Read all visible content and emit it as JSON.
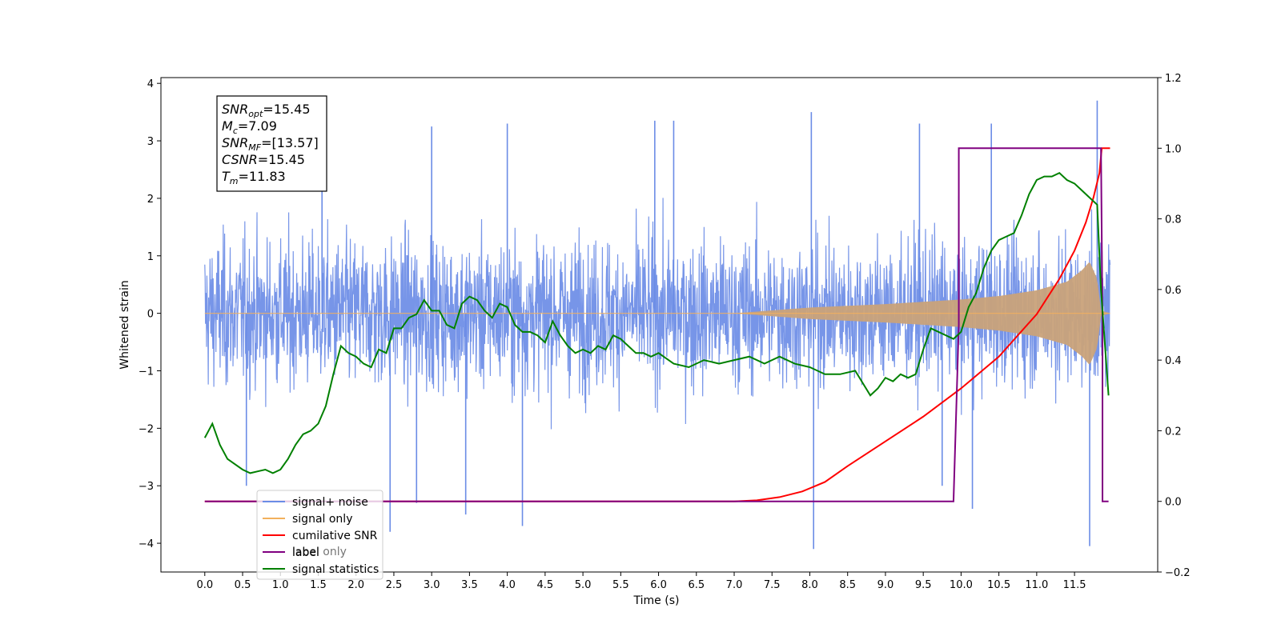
{
  "chart_data": {
    "type": "line",
    "xlabel": "Time (s)",
    "ylabel": "Whitened strain",
    "xlim": [
      -0.58,
      12.6
    ],
    "ylim": [
      -4.5,
      4.1
    ],
    "y2lim": [
      -0.2,
      1.2
    ],
    "x_ticks": [
      0.0,
      0.5,
      1.0,
      1.5,
      2.0,
      2.5,
      3.0,
      3.5,
      4.0,
      4.5,
      5.0,
      5.5,
      6.0,
      6.5,
      7.0,
      7.5,
      8.0,
      8.5,
      9.0,
      9.5,
      10.0,
      10.5,
      11.0,
      11.5
    ],
    "x_tick_labels": [
      "0.0",
      "0.5",
      "1.0",
      "1.5",
      "2.0",
      "2.5",
      "3.0",
      "3.5",
      "4.0",
      "4.5",
      "5.0",
      "5.5",
      "6.0",
      "6.5",
      "7.0",
      "7.5",
      "8.0",
      "8.5",
      "9.0",
      "9.5",
      "10.0",
      "10.5",
      "11.0",
      "11.5"
    ],
    "y_ticks": [
      -4,
      -3,
      -2,
      -1,
      0,
      1,
      2,
      3,
      4
    ],
    "y_tick_labels": [
      "−4",
      "−3",
      "−2",
      "−1",
      "0",
      "1",
      "2",
      "3",
      "4"
    ],
    "y2_ticks": [
      -0.2,
      0.0,
      0.2,
      0.4,
      0.6,
      0.8,
      1.0,
      1.2
    ],
    "y2_tick_labels": [
      "−0.2",
      "0.0",
      "0.2",
      "0.4",
      "0.6",
      "0.8",
      "1.0",
      "1.2"
    ],
    "grid": false,
    "legend_position": "lower-left",
    "colors": {
      "signal_noise": "#6b8ce6",
      "signal_only": "#f2b05c",
      "cumulative_snr": "#ff0000",
      "label": "#800080",
      "signal_statistics": "#008000"
    },
    "series": [
      {
        "name": "signal+ noise",
        "axis": "left",
        "style": "dense-noise",
        "x_range": [
          0.0,
          11.97
        ],
        "typical_band": [
          -1.3,
          1.3
        ],
        "max_envelope_approx": [
          -2.5,
          2.9
        ],
        "spikes": [
          {
            "x": 8.02,
            "y": 3.5
          },
          {
            "x": 11.8,
            "y": 3.7
          },
          {
            "x": 8.05,
            "y": -4.1
          },
          {
            "x": 11.7,
            "y": -4.05
          },
          {
            "x": 2.45,
            "y": -3.8
          },
          {
            "x": 4.2,
            "y": -3.7
          },
          {
            "x": 3.45,
            "y": -3.5
          },
          {
            "x": 10.15,
            "y": -3.4
          },
          {
            "x": 4.0,
            "y": 3.3
          },
          {
            "x": 5.95,
            "y": 3.35
          },
          {
            "x": 6.2,
            "y": 3.35
          },
          {
            "x": 9.45,
            "y": 3.3
          },
          {
            "x": 10.4,
            "y": 3.3
          },
          {
            "x": 3.0,
            "y": 3.25
          },
          {
            "x": 9.75,
            "y": -3.0
          },
          {
            "x": 0.55,
            "y": -3.0
          },
          {
            "x": 2.8,
            "y": -3.3
          },
          {
            "x": 1.55,
            "y": 2.8
          }
        ]
      },
      {
        "name": "signal only",
        "axis": "left",
        "style": "chirp-envelope",
        "x": [
          0.0,
          7.0,
          7.5,
          8.0,
          8.5,
          9.0,
          9.5,
          10.0,
          10.5,
          11.0,
          11.4,
          11.6,
          11.7,
          11.8,
          11.85,
          11.97
        ],
        "envelope": [
          0.0,
          0.0,
          0.05,
          0.1,
          0.13,
          0.16,
          0.2,
          0.24,
          0.3,
          0.4,
          0.55,
          0.75,
          0.9,
          0.6,
          0.05,
          0.0
        ]
      },
      {
        "name": "cumilative SNR",
        "axis": "right",
        "x": [
          0.0,
          7.0,
          7.3,
          7.6,
          7.9,
          8.2,
          8.5,
          9.0,
          9.5,
          10.0,
          10.5,
          11.0,
          11.3,
          11.5,
          11.65,
          11.75,
          11.83,
          11.86,
          11.97
        ],
        "y": [
          0.0,
          0.0,
          0.003,
          0.012,
          0.028,
          0.055,
          0.1,
          0.17,
          0.24,
          0.32,
          0.41,
          0.53,
          0.63,
          0.71,
          0.79,
          0.86,
          0.93,
          1.0,
          1.0
        ]
      },
      {
        "name": "label",
        "axis": "right",
        "x": [
          0.0,
          9.9,
          9.9,
          9.97,
          9.97,
          11.85,
          11.85,
          11.87,
          11.87,
          11.95
        ],
        "y": [
          0.0,
          0.0,
          0.0,
          0.5,
          1.0,
          1.0,
          1.0,
          0.5,
          0.0,
          0.0
        ]
      },
      {
        "name": "signal statistics",
        "axis": "right",
        "x": [
          0.0,
          0.05,
          0.1,
          0.2,
          0.3,
          0.5,
          0.6,
          0.7,
          0.8,
          0.9,
          1.0,
          1.1,
          1.2,
          1.3,
          1.4,
          1.5,
          1.6,
          1.7,
          1.8,
          1.9,
          2.0,
          2.1,
          2.2,
          2.3,
          2.4,
          2.5,
          2.6,
          2.7,
          2.8,
          2.9,
          3.0,
          3.1,
          3.2,
          3.3,
          3.4,
          3.5,
          3.6,
          3.7,
          3.8,
          3.9,
          4.0,
          4.1,
          4.2,
          4.3,
          4.4,
          4.5,
          4.6,
          4.7,
          4.8,
          4.9,
          5.0,
          5.1,
          5.2,
          5.3,
          5.4,
          5.5,
          5.6,
          5.7,
          5.8,
          5.9,
          6.0,
          6.2,
          6.4,
          6.6,
          6.8,
          7.0,
          7.2,
          7.4,
          7.6,
          7.8,
          8.0,
          8.2,
          8.4,
          8.6,
          8.8,
          8.9,
          9.0,
          9.1,
          9.2,
          9.3,
          9.4,
          9.5,
          9.6,
          9.7,
          9.8,
          9.9,
          10.0,
          10.1,
          10.2,
          10.3,
          10.4,
          10.5,
          10.6,
          10.7,
          10.8,
          10.9,
          11.0,
          11.1,
          11.2,
          11.3,
          11.4,
          11.5,
          11.6,
          11.7,
          11.8,
          11.85,
          11.9,
          11.95
        ],
        "y": [
          0.18,
          0.2,
          0.22,
          0.16,
          0.12,
          0.09,
          0.08,
          0.085,
          0.09,
          0.08,
          0.09,
          0.12,
          0.16,
          0.19,
          0.2,
          0.22,
          0.27,
          0.36,
          0.44,
          0.42,
          0.41,
          0.39,
          0.38,
          0.43,
          0.42,
          0.49,
          0.49,
          0.52,
          0.53,
          0.57,
          0.54,
          0.54,
          0.5,
          0.49,
          0.56,
          0.58,
          0.57,
          0.54,
          0.52,
          0.56,
          0.55,
          0.5,
          0.48,
          0.48,
          0.47,
          0.45,
          0.51,
          0.47,
          0.44,
          0.42,
          0.43,
          0.42,
          0.44,
          0.43,
          0.47,
          0.46,
          0.44,
          0.42,
          0.42,
          0.41,
          0.42,
          0.39,
          0.38,
          0.4,
          0.39,
          0.4,
          0.41,
          0.39,
          0.41,
          0.39,
          0.38,
          0.36,
          0.36,
          0.37,
          0.3,
          0.32,
          0.35,
          0.34,
          0.36,
          0.35,
          0.36,
          0.43,
          0.49,
          0.48,
          0.47,
          0.46,
          0.48,
          0.55,
          0.59,
          0.66,
          0.71,
          0.74,
          0.75,
          0.76,
          0.81,
          0.87,
          0.91,
          0.92,
          0.92,
          0.93,
          0.91,
          0.9,
          0.88,
          0.86,
          0.84,
          0.6,
          0.45,
          0.3
        ]
      }
    ],
    "legend": [
      {
        "label": "signal+ noise",
        "color": "#6b8ce6"
      },
      {
        "label": "signal only",
        "color": "#f2b05c"
      },
      {
        "label": "cumilative SNR",
        "color": "#ff0000"
      },
      {
        "label": "label",
        "color": "#800080"
      },
      {
        "label": "signal statistics",
        "color": "#008000"
      }
    ],
    "legend_hidden_text": "label only",
    "annotation": [
      {
        "base": "SNR",
        "sub": "opt",
        "value": "=15.45"
      },
      {
        "base": "M",
        "sub": "c",
        "value": "=7.09"
      },
      {
        "base": "SNR",
        "sub": "MF",
        "value": "=[13.57]"
      },
      {
        "base": "CSNR",
        "sub": "",
        "value": "=15.45"
      },
      {
        "base": "T",
        "sub": "m",
        "value": "=11.83"
      }
    ]
  }
}
